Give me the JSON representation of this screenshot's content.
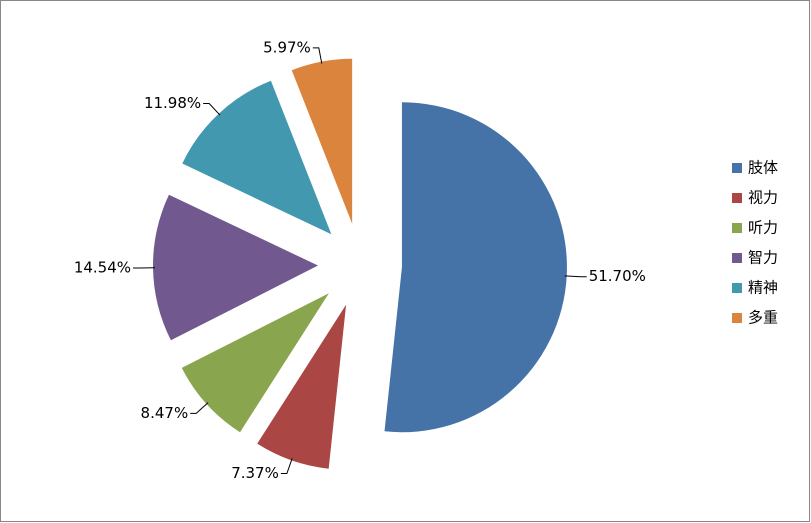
{
  "chart_data": {
    "type": "pie",
    "categories": [
      "肢体",
      "视力",
      "听力",
      "智力",
      "精神",
      "多重"
    ],
    "values": [
      51.7,
      7.37,
      8.47,
      14.54,
      11.98,
      5.97
    ],
    "value_labels": [
      "51.70%",
      "7.37%",
      "8.47%",
      "14.54%",
      "11.98%",
      "5.97%"
    ],
    "colors": [
      "#4572a7",
      "#aa4643",
      "#89a54e",
      "#71588f",
      "#4198af",
      "#db843d"
    ],
    "legend": "right"
  }
}
